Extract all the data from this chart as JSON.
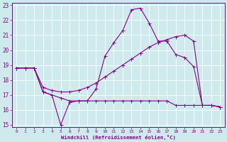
{
  "xlabel": "Windchill (Refroidissement éolien,°C)",
  "bg_color": "#ceeaec",
  "grid_color": "#ffffff",
  "line_color": "#880088",
  "xlim_min": -0.5,
  "xlim_max": 23.5,
  "ylim_min": 14.85,
  "ylim_max": 23.15,
  "yticks": [
    15,
    16,
    17,
    18,
    19,
    20,
    21,
    22,
    23
  ],
  "xticks": [
    0,
    1,
    2,
    3,
    4,
    5,
    6,
    7,
    8,
    9,
    10,
    11,
    12,
    13,
    14,
    15,
    16,
    17,
    18,
    19,
    20,
    21,
    22,
    23
  ],
  "line1_x": [
    0,
    1,
    2,
    3,
    4,
    5,
    6,
    7,
    8,
    9,
    10,
    11,
    12,
    13,
    14,
    15,
    16,
    17,
    18,
    19,
    20,
    21,
    22,
    23
  ],
  "line1_y": [
    18.8,
    18.8,
    18.8,
    17.2,
    17.0,
    15.0,
    16.5,
    16.6,
    16.6,
    17.4,
    19.6,
    20.5,
    21.3,
    22.7,
    22.8,
    21.8,
    20.6,
    20.6,
    19.7,
    19.5,
    18.9,
    16.3,
    16.3,
    16.2
  ],
  "line2_x": [
    0,
    1,
    2,
    3,
    4,
    5,
    6,
    7,
    8,
    9,
    10,
    11,
    12,
    13,
    14,
    15,
    16,
    17,
    18,
    19,
    20,
    21,
    22,
    23
  ],
  "line2_y": [
    18.8,
    18.8,
    18.8,
    17.5,
    17.3,
    17.2,
    17.2,
    17.3,
    17.5,
    17.8,
    18.2,
    18.6,
    19.0,
    19.4,
    19.8,
    20.2,
    20.5,
    20.7,
    20.9,
    21.0,
    20.6,
    16.3,
    16.3,
    16.2
  ],
  "line3_x": [
    0,
    1,
    2,
    3,
    4,
    5,
    6,
    7,
    8,
    9,
    10,
    11,
    12,
    13,
    14,
    15,
    16,
    17,
    18,
    19,
    20,
    21,
    22,
    23
  ],
  "line3_y": [
    18.8,
    18.8,
    18.8,
    17.2,
    17.0,
    16.8,
    16.6,
    16.6,
    16.6,
    16.6,
    16.6,
    16.6,
    16.6,
    16.6,
    16.6,
    16.6,
    16.6,
    16.6,
    16.3,
    16.3,
    16.3,
    16.3,
    16.3,
    16.2
  ]
}
